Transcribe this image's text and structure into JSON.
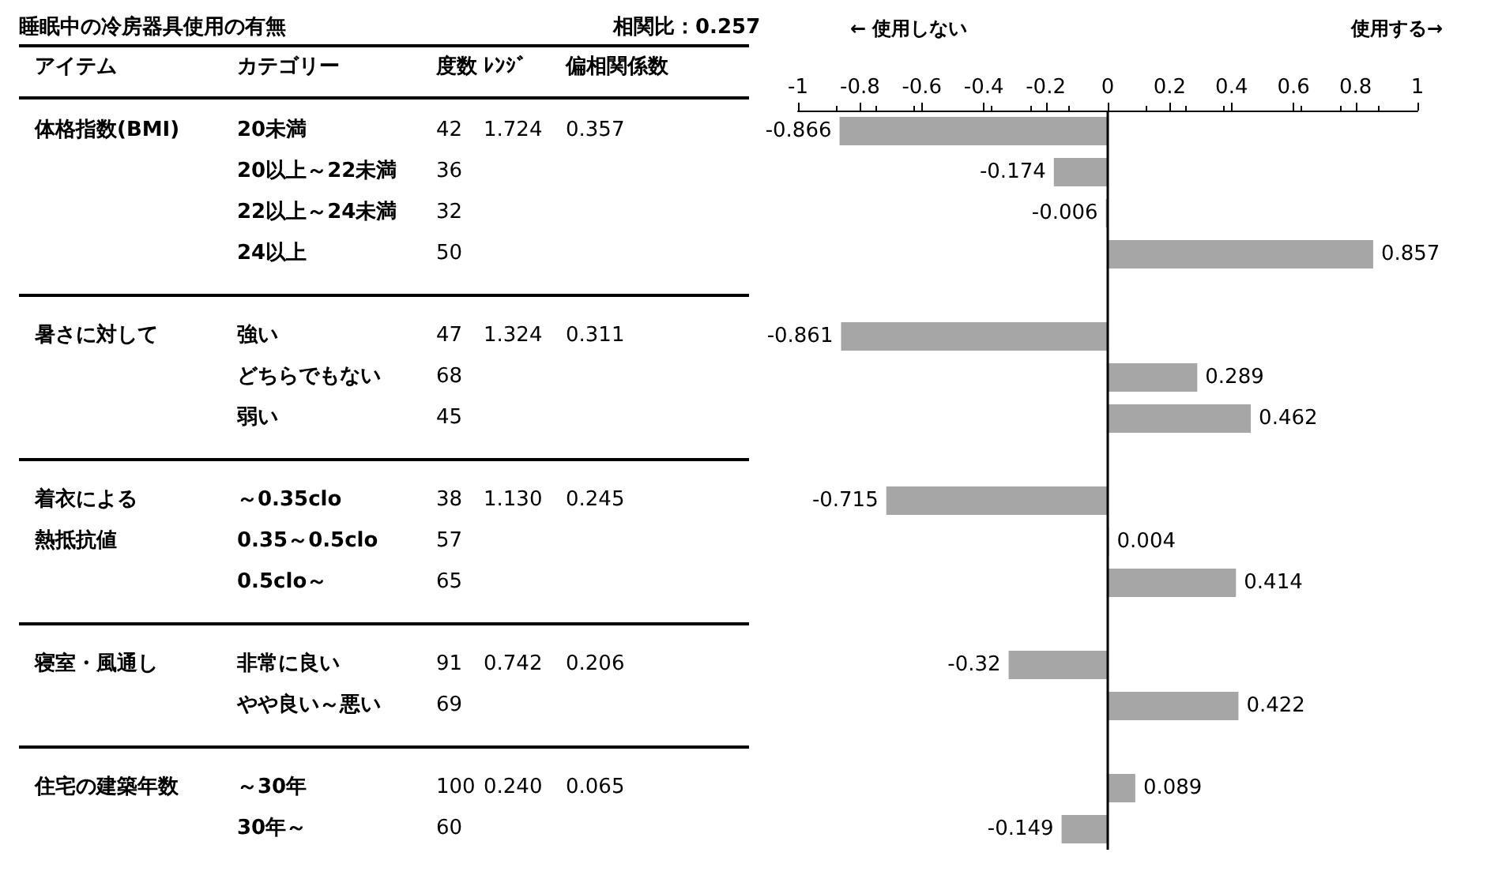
{
  "chart_data": [
    {
      "type": "other",
      "title": "睡眠中の冷房器具使用の有無",
      "annotations": [
        "相関比：0.257",
        "アイテム",
        "カテゴリー",
        "度数",
        "ﾚﾝｼﾞ",
        "偏相関係数",
        "体格指数(BMI)",
        "20未満",
        "42",
        "1.724",
        "0.357",
        "20以上～22未満",
        "36",
        "22以上～24未満",
        "32",
        "24以上",
        "50",
        "暑さに対して",
        "強い",
        "47",
        "1.324",
        "0.311",
        "どちらでもない",
        "68",
        "弱い",
        "45",
        "着衣による",
        "～0.35clo",
        "38",
        "1.130",
        "0.245",
        "熱抵抗値",
        "0.35～0.5clo",
        "57",
        "0.5clo～",
        "65",
        "寝室・風通し",
        "非常に良い",
        "91",
        "0.742",
        "0.206",
        "やや良い～悪い",
        "69",
        "住宅の建築年数",
        "～30年",
        "100",
        "0.240",
        "0.065",
        "30年～",
        "60"
      ]
    },
    {
      "type": "bar",
      "orientation": "horizontal",
      "categories": [
        null,
        null,
        null,
        null,
        null,
        null,
        null,
        null,
        null,
        null,
        null,
        null,
        null,
        null,
        null,
        null,
        null,
        null
      ],
      "values": [
        -0.866,
        -0.174,
        -0.006,
        0.857,
        null,
        -0.861,
        0.289,
        0.462,
        null,
        -0.715,
        0.004,
        0.414,
        null,
        -0.32,
        0.422,
        null,
        0.089,
        -0.149
      ],
      "color": "#a6a6a6",
      "data_labels": true,
      "grid": false,
      "ref_lines": [
        {
          "axis": "x",
          "value": 0
        }
      ],
      "xlim": [
        -1,
        1
      ],
      "xticks": [
        -1,
        -0.8,
        -0.6,
        -0.4,
        -0.2,
        0,
        0.2,
        0.4,
        0.6,
        0.8,
        1
      ],
      "annotations": [
        "← 使用しない",
        "使用する→"
      ]
    }
  ]
}
